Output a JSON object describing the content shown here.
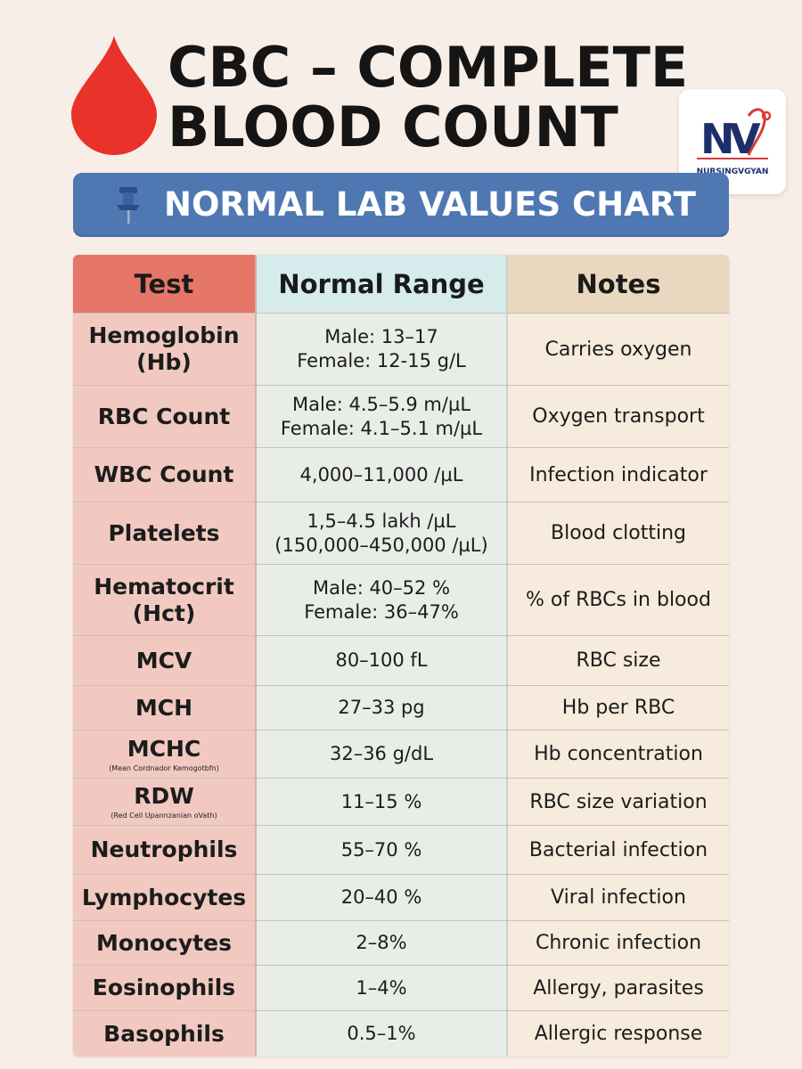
{
  "header": {
    "title_line1": "CBC – COMPLETE",
    "title_line2": "BLOOD COUNT",
    "banner": "NORMAL LAB VALUES CHART",
    "logo_text": "NURSINGVGYAN",
    "drop_color": "#e8322a",
    "banner_color": "#4f78b2"
  },
  "table": {
    "headers": {
      "test": "Test",
      "range": "Normal Range",
      "notes": "Notes"
    },
    "rows": [
      {
        "test": "Hemoglobin (Hb)",
        "sub": "",
        "range": [
          "Male: 13–17",
          "Female: 12-15 g/L"
        ],
        "notes": "Carries oxygen"
      },
      {
        "test": "RBC Count",
        "sub": "",
        "range": [
          "Male: 4.5–5.9 m/µL",
          "Female: 4.1–5.1 m/µL"
        ],
        "notes": "Oxygen transport"
      },
      {
        "test": "WBC Count",
        "sub": "",
        "range": [
          "4,000–11,000 /µL"
        ],
        "notes": "Infection indicator"
      },
      {
        "test": "Platelets",
        "sub": "",
        "range": [
          "1,5–4.5 lakh /µL",
          "(150,000–450,000 /µL)"
        ],
        "notes": "Blood clotting"
      },
      {
        "test": "Hematocrit (Hct)",
        "sub": "",
        "range": [
          "Male: 40–52 %",
          "Female: 36–47%"
        ],
        "notes": "% of RBCs in blood"
      },
      {
        "test": "MCV",
        "sub": "",
        "range": [
          "80–100 fL"
        ],
        "notes": "RBC size"
      },
      {
        "test": "MCH",
        "sub": "",
        "range": [
          "27–33 pg"
        ],
        "notes": "Hb per RBC"
      },
      {
        "test": "MCHC",
        "sub": "(Mean Cordnador Kemogotbfn)",
        "range": [
          "32–36 g/dL"
        ],
        "notes": "Hb concentration"
      },
      {
        "test": "RDW",
        "sub": "(Red Cell Upannzanian oVath)",
        "range": [
          "11–15 %"
        ],
        "notes": "RBC size variation"
      },
      {
        "test": "Neutrophils",
        "sub": "",
        "range": [
          "55–70 %"
        ],
        "notes": "Bacterial infection"
      },
      {
        "test": "Lymphocytes",
        "sub": "",
        "range": [
          "20–40 %"
        ],
        "notes": "Viral infection"
      },
      {
        "test": "Monocytes",
        "sub": "",
        "range": [
          "2–8%"
        ],
        "notes": "Chronic infection"
      },
      {
        "test": "Eosinophils",
        "sub": "",
        "range": [
          "1–4%"
        ],
        "notes": "Allergy, parasites"
      },
      {
        "test": "Basophils",
        "sub": "",
        "range": [
          "0.5–1%"
        ],
        "notes": "Allergic response"
      }
    ]
  }
}
